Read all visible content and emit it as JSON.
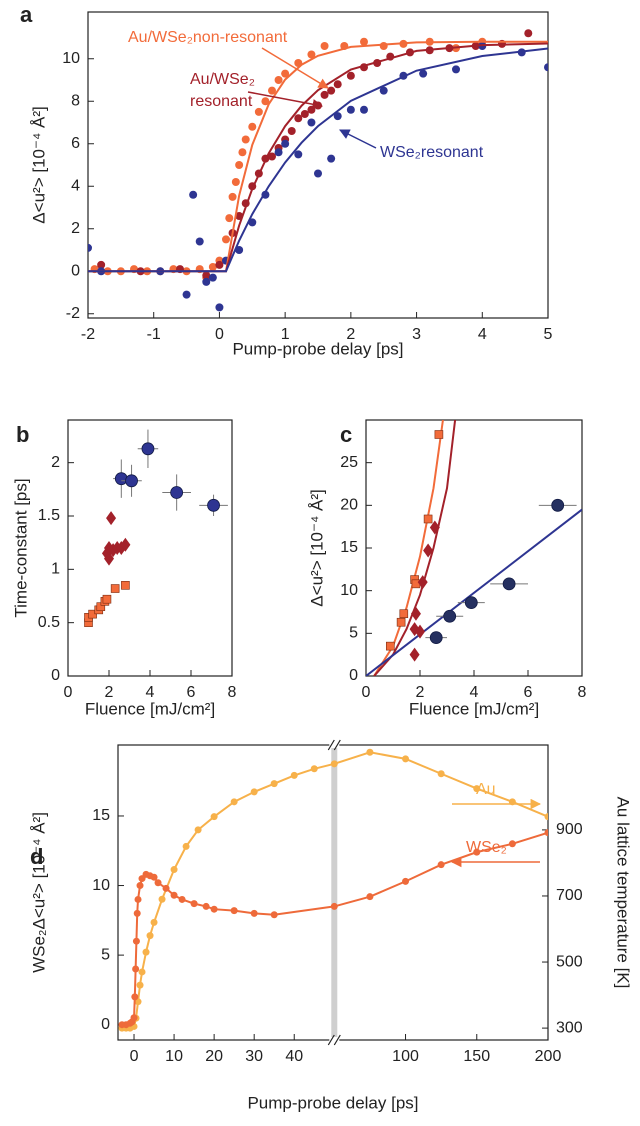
{
  "chart_data": [
    {
      "type": "scatter",
      "label": "a",
      "xlabel": "Pump-probe delay [ps]",
      "ylabel": "Δ<u²> [10⁻⁴ Å²]",
      "xlim": [
        -2,
        5
      ],
      "ylim": [
        -2.2,
        12.2
      ],
      "xticks": [
        -2,
        -1,
        0,
        1,
        2,
        3,
        4,
        5
      ],
      "yticks": [
        -2,
        0,
        2,
        4,
        6,
        8,
        10
      ],
      "series": [
        {
          "color": "#f26b3a",
          "mode": "markers",
          "marker": "circle",
          "x": [
            -1.9,
            -1.7,
            -1.5,
            -1.3,
            -1.1,
            -0.9,
            -0.7,
            -0.5,
            -0.3,
            -0.2,
            -0.1,
            0,
            0.1,
            0.15,
            0.2,
            0.25,
            0.3,
            0.35,
            0.4,
            0.5,
            0.6,
            0.7,
            0.8,
            0.9,
            1,
            1.2,
            1.4,
            1.6,
            1.9,
            2.2,
            2.5,
            2.8,
            3.2,
            3.6,
            4
          ],
          "values": [
            0.1,
            0,
            0,
            0.1,
            0,
            0,
            0.1,
            0,
            0.1,
            -0.3,
            0.2,
            0.5,
            1.5,
            2.5,
            3.5,
            4.2,
            5,
            5.6,
            6.2,
            6.8,
            7.5,
            8,
            8.5,
            9,
            9.3,
            9.8,
            10.2,
            10.6,
            10.6,
            10.8,
            10.6,
            10.7,
            10.8,
            10.5,
            10.8
          ]
        },
        {
          "color": "#a3212a",
          "mode": "markers",
          "marker": "circle",
          "x": [
            -1.8,
            -1.2,
            -0.6,
            -0.2,
            0,
            0.2,
            0.3,
            0.4,
            0.5,
            0.6,
            0.7,
            0.8,
            0.9,
            1,
            1.1,
            1.2,
            1.3,
            1.4,
            1.5,
            1.6,
            1.7,
            1.8,
            2,
            2.2,
            2.4,
            2.6,
            2.9,
            3.2,
            3.5,
            3.9,
            4.3,
            4.7
          ],
          "values": [
            0.3,
            0,
            0.1,
            -0.2,
            0.3,
            1.8,
            2.6,
            3.2,
            4,
            4.6,
            5.3,
            5.4,
            5.8,
            6.2,
            6.6,
            7.2,
            7.4,
            7.6,
            7.8,
            8.3,
            8.5,
            8.8,
            9.2,
            9.6,
            9.8,
            10.1,
            10.3,
            10.4,
            10.5,
            10.6,
            10.7,
            11.2
          ]
        },
        {
          "color": "#2e3592",
          "mode": "markers",
          "marker": "circle",
          "x": [
            -2,
            -1.8,
            -0.9,
            -0.5,
            -0.4,
            -0.3,
            -0.2,
            -0.1,
            0,
            0.1,
            0.3,
            0.5,
            0.7,
            0.9,
            1,
            1.2,
            1.4,
            1.5,
            1.7,
            1.8,
            2,
            2.2,
            2.5,
            2.8,
            3.1,
            3.6,
            4,
            4.6,
            5
          ],
          "values": [
            1.1,
            0,
            0,
            -1.1,
            3.6,
            1.4,
            -0.5,
            -0.3,
            -1.7,
            0.5,
            1,
            2.3,
            3.6,
            5.6,
            6,
            5.5,
            7,
            4.6,
            5.3,
            7.3,
            7.6,
            7.6,
            8.5,
            9.2,
            9.3,
            9.5,
            10.6,
            10.3,
            9.6
          ]
        },
        {
          "color": "#f26b3a",
          "mode": "lines",
          "x": [
            -2,
            0.1,
            0.3,
            0.5,
            0.75,
            1,
            1.25,
            1.5,
            2,
            3,
            4,
            5
          ],
          "values": [
            0,
            0,
            3.56,
            5.95,
            7.86,
            9.02,
            9.72,
            10.14,
            10.56,
            10.77,
            10.8,
            10.8
          ]
        },
        {
          "color": "#a3212a",
          "mode": "lines",
          "x": [
            -2,
            0.1,
            0.3,
            0.5,
            0.75,
            1,
            1.25,
            1.5,
            2,
            3,
            4,
            5
          ],
          "values": [
            0,
            0,
            2.15,
            3.88,
            5.55,
            6.83,
            7.79,
            8.52,
            9.49,
            10.37,
            10.64,
            10.72
          ]
        },
        {
          "color": "#2e3592",
          "mode": "lines",
          "x": [
            -2,
            0.1,
            0.3,
            0.5,
            0.75,
            1,
            1.25,
            1.5,
            2,
            3,
            4,
            5
          ],
          "values": [
            0,
            0,
            1.44,
            2.69,
            4.0,
            5.12,
            6.05,
            6.83,
            8.02,
            9.44,
            10.13,
            10.48
          ]
        }
      ],
      "annotations": [
        {
          "text": "Au/WSe₂non-resonant",
          "color": "#f26b3a"
        },
        {
          "text": "Au/WSe₂",
          "color": "#a3212a"
        },
        {
          "text": "resonant",
          "color": "#a3212a"
        },
        {
          "text": "WSe₂resonant",
          "color": "#2e3592"
        }
      ]
    },
    {
      "type": "scatter",
      "label": "b",
      "xlabel": "Fluence [mJ/cm²]",
      "ylabel": "Time-constant [ps]",
      "xlim": [
        0,
        8
      ],
      "ylim": [
        0,
        2.4
      ],
      "xticks": [
        0,
        2,
        4,
        6,
        8
      ],
      "yticks": [
        0,
        0.5,
        1,
        1.5,
        2
      ],
      "series": [
        {
          "color": "#f26b3a",
          "mode": "markers",
          "marker": "square",
          "x": [
            1.0,
            1.0,
            1.2,
            1.5,
            1.6,
            1.8,
            1.9,
            2.3,
            2.8
          ],
          "values": [
            0.5,
            0.55,
            0.58,
            0.62,
            0.65,
            0.7,
            0.72,
            0.82,
            0.85
          ]
        },
        {
          "color": "#a3212a",
          "mode": "markers",
          "marker": "diamond",
          "x": [
            1.9,
            2.0,
            2.0,
            2.1,
            2.2,
            2.4,
            2.6,
            2.8
          ],
          "values": [
            1.15,
            1.1,
            1.2,
            1.48,
            1.18,
            1.2,
            1.2,
            1.23
          ]
        },
        {
          "color": "#2e3592",
          "mode": "markers",
          "marker": "circle",
          "x": [
            2.6,
            3.1,
            3.9,
            5.3,
            7.1
          ],
          "values": [
            1.85,
            1.83,
            2.13,
            1.72,
            1.6
          ],
          "xerr": [
            0.4,
            0.5,
            0.5,
            0.7,
            0.7
          ],
          "yerr": [
            0.18,
            0.15,
            0.18,
            0.17,
            0.1
          ]
        }
      ]
    },
    {
      "type": "scatter",
      "label": "c",
      "xlabel": "Fluence [mJ/cm²]",
      "ylabel": "Δ<u²> [10⁻⁴ Å²]",
      "xlim": [
        0,
        8
      ],
      "ylim": [
        0,
        30
      ],
      "xticks": [
        0,
        2,
        4,
        6,
        8
      ],
      "yticks": [
        0,
        5,
        10,
        15,
        20,
        25
      ],
      "series": [
        {
          "color": "#f26b3a",
          "mode": "lines",
          "x": [
            0.3,
            1,
            1.5,
            2,
            2.5,
            2.85
          ],
          "values": [
            0,
            3.5,
            8,
            14,
            22,
            30
          ]
        },
        {
          "color": "#a3212a",
          "mode": "lines",
          "x": [
            0.3,
            1,
            1.5,
            2,
            2.5,
            3,
            3.3
          ],
          "values": [
            0,
            2.5,
            5.5,
            9.5,
            15,
            22,
            30
          ]
        },
        {
          "color": "#2e3592",
          "mode": "lines",
          "x": [
            0,
            8
          ],
          "values": [
            0,
            19.5
          ]
        },
        {
          "color": "#f26b3a",
          "mode": "markers",
          "marker": "square",
          "x": [
            0.9,
            1.3,
            1.4,
            1.8,
            1.85,
            2.3,
            2.7
          ],
          "values": [
            3.5,
            6.3,
            7.3,
            11.3,
            10.8,
            18.4,
            28.3
          ]
        },
        {
          "color": "#a3212a",
          "mode": "markers",
          "marker": "diamond",
          "x": [
            1.8,
            1.8,
            1.85,
            2.0,
            2.1,
            2.3,
            2.55
          ],
          "values": [
            2.5,
            5.5,
            7.3,
            5.2,
            11,
            14.7,
            17.4
          ]
        },
        {
          "color": "#253060",
          "mode": "markers",
          "marker": "circle",
          "x": [
            2.6,
            3.1,
            3.9,
            5.3,
            7.1
          ],
          "values": [
            4.5,
            7,
            8.6,
            10.8,
            20
          ],
          "xerr": [
            0.4,
            0.5,
            0.5,
            0.7,
            0.7
          ]
        }
      ]
    },
    {
      "type": "scatter",
      "label": "d",
      "xlabel": "Pump-probe delay [ps]",
      "ylabel": "WSe₂Δ<u²> [10⁻⁴ Å²]",
      "y2label": "Au lattice temperature [K]",
      "xlim": [
        -4,
        200
      ],
      "xbreak": 50,
      "ylim": [
        -1.1,
        20.1
      ],
      "y2lim": [
        264,
        1157
      ],
      "xticks": [
        0,
        10,
        20,
        30,
        40,
        100,
        150,
        200
      ],
      "yticks": [
        0,
        5,
        10,
        15
      ],
      "y2ticks": [
        300,
        500,
        700,
        900
      ],
      "series": [
        {
          "color": "#f7b14a",
          "mode": "lines+markers",
          "marker": "circle",
          "axis": "y2",
          "x": [
            -3,
            -2,
            -1,
            0,
            0.5,
            1,
            1.5,
            2,
            3,
            4,
            5,
            7,
            10,
            13,
            16,
            20,
            25,
            30,
            35,
            40,
            45,
            50,
            75,
            100,
            125,
            150,
            175,
            200
          ],
          "values": [
            300,
            300,
            300,
            305,
            330,
            380,
            430,
            470,
            530,
            580,
            620,
            690,
            780,
            850,
            900,
            940,
            985,
            1015,
            1040,
            1065,
            1085,
            1100,
            1135,
            1115,
            1070,
            1025,
            985,
            940
          ]
        },
        {
          "color": "#ee6a3a",
          "mode": "lines+markers",
          "marker": "circle",
          "x": [
            -3,
            -2,
            -1,
            -0.5,
            0,
            0.2,
            0.4,
            0.6,
            0.8,
            1,
            1.5,
            2,
            3,
            4,
            5,
            6,
            8,
            10,
            12,
            15,
            18,
            20,
            25,
            30,
            35,
            50,
            75,
            100,
            125,
            150,
            175,
            200
          ],
          "values": [
            0,
            0,
            0.1,
            0.2,
            0.5,
            2,
            4,
            6,
            8,
            9,
            10,
            10.5,
            10.8,
            10.7,
            10.6,
            10.2,
            9.8,
            9.3,
            9,
            8.7,
            8.5,
            8.3,
            8.2,
            8.0,
            7.9,
            8.5,
            9.2,
            10.3,
            11.5,
            12.4,
            13,
            13.8
          ]
        }
      ],
      "annotations": [
        {
          "text": "Au",
          "color": "#f7b14a"
        },
        {
          "text": "WSe₂",
          "color": "#ee6a3a"
        }
      ]
    }
  ]
}
